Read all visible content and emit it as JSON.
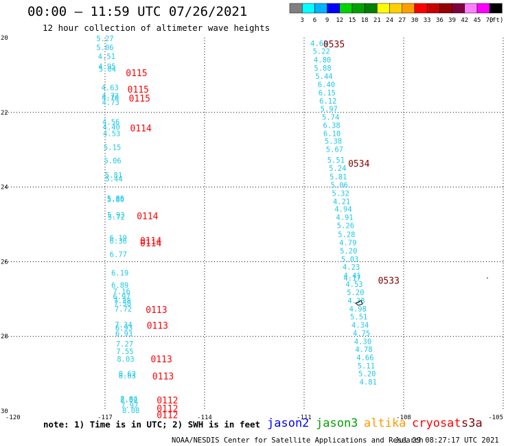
{
  "header": {
    "title": "00:00 – 11:59 UTC 07/26/2021",
    "subtitle": "12 hour collection of altimeter wave heights"
  },
  "color_scale": {
    "unit": "(ft)",
    "labels": [
      "3",
      "6",
      "9",
      "12",
      "15",
      "18",
      "21",
      "24",
      "27",
      "30",
      "33",
      "36",
      "39",
      "42",
      "45",
      "70"
    ],
    "colors": [
      "#808080",
      "#00ffff",
      "#00b4ff",
      "#0000ff",
      "#00d400",
      "#00a000",
      "#008000",
      "#ffff00",
      "#ffd000",
      "#ffa000",
      "#ff0000",
      "#c80000",
      "#960000",
      "#800040",
      "#ff80ff",
      "#ff00ff",
      "#000000"
    ]
  },
  "map": {
    "lon_labels": [
      "-120",
      "-117",
      "-114",
      "-111",
      "-108",
      "-105"
    ],
    "lat_labels": [
      "20",
      "22",
      "24",
      "26",
      "28",
      "30"
    ],
    "obs_left": [
      {
        "v": "5.27",
        "lon": -117.0,
        "lat": 20.02
      },
      {
        "v": "5.06",
        "lon": -117.0,
        "lat": 20.26
      },
      {
        "v": "4.51",
        "lon": -116.95,
        "lat": 20.5
      },
      {
        "v": "4.95",
        "lon": -116.94,
        "lat": 20.76
      },
      {
        "v": "5.04",
        "lon": -116.93,
        "lat": 20.84
      },
      {
        "v": "4.63",
        "lon": -116.85,
        "lat": 21.33
      },
      {
        "v": "4.72",
        "lon": -116.84,
        "lat": 21.55
      },
      {
        "v": "4.70",
        "lon": -116.84,
        "lat": 21.61
      },
      {
        "v": "4.73",
        "lon": -116.83,
        "lat": 21.73
      },
      {
        "v": "4.56",
        "lon": -116.82,
        "lat": 22.25
      },
      {
        "v": "4.40",
        "lon": -116.81,
        "lat": 22.39
      },
      {
        "v": "4.53",
        "lon": -116.8,
        "lat": 22.56
      },
      {
        "v": "5.15",
        "lon": -116.78,
        "lat": 22.93
      },
      {
        "v": "5.06",
        "lon": -116.77,
        "lat": 23.29
      },
      {
        "v": "5.81",
        "lon": -116.74,
        "lat": 23.68
      },
      {
        "v": "5.44",
        "lon": -116.73,
        "lat": 23.78
      },
      {
        "v": "5.86",
        "lon": -116.68,
        "lat": 24.3
      },
      {
        "v": "5.80",
        "lon": -116.68,
        "lat": 24.33
      },
      {
        "v": "5.93",
        "lon": -116.67,
        "lat": 24.74
      },
      {
        "v": "5.72",
        "lon": -116.66,
        "lat": 24.8
      },
      {
        "v": "6.19",
        "lon": -116.6,
        "lat": 25.36
      },
      {
        "v": "6.36",
        "lon": -116.6,
        "lat": 25.44
      },
      {
        "v": "6.77",
        "lon": -116.6,
        "lat": 25.8
      },
      {
        "v": "6.19",
        "lon": -116.55,
        "lat": 26.3
      },
      {
        "v": "6.89",
        "lon": -116.55,
        "lat": 26.63
      },
      {
        "v": "7.16",
        "lon": -116.5,
        "lat": 26.79
      },
      {
        "v": "6.97",
        "lon": -116.5,
        "lat": 26.93
      },
      {
        "v": "7.38",
        "lon": -116.48,
        "lat": 27.04
      },
      {
        "v": "7.58",
        "lon": -116.47,
        "lat": 27.11
      },
      {
        "v": "7.72",
        "lon": -116.45,
        "lat": 27.26
      },
      {
        "v": "7.34",
        "lon": -116.44,
        "lat": 27.68
      },
      {
        "v": "6.93",
        "lon": -116.43,
        "lat": 27.77
      },
      {
        "v": "6.93",
        "lon": -116.43,
        "lat": 27.92
      },
      {
        "v": "7.27",
        "lon": -116.41,
        "lat": 28.2
      },
      {
        "v": "7.55",
        "lon": -116.4,
        "lat": 28.4
      },
      {
        "v": "8.03",
        "lon": -116.38,
        "lat": 28.6
      },
      {
        "v": "8.62",
        "lon": -116.33,
        "lat": 29.0
      },
      {
        "v": "8.63",
        "lon": -116.33,
        "lat": 29.05
      },
      {
        "v": "7.84",
        "lon": -116.28,
        "lat": 29.68
      },
      {
        "v": "8.02",
        "lon": -116.28,
        "lat": 29.7
      },
      {
        "v": "7.97",
        "lon": -116.26,
        "lat": 29.84
      },
      {
        "v": "8.08",
        "lon": -116.22,
        "lat": 29.98
      }
    ],
    "obs_right": [
      {
        "v": "4.63",
        "lon": -110.55,
        "lat": 20.15
      },
      {
        "v": "5.22",
        "lon": -110.48,
        "lat": 20.36
      },
      {
        "v": "4.80",
        "lon": -110.45,
        "lat": 20.59
      },
      {
        "v": "5.88",
        "lon": -110.44,
        "lat": 20.81
      },
      {
        "v": "5.44",
        "lon": -110.4,
        "lat": 21.03
      },
      {
        "v": "6.40",
        "lon": -110.33,
        "lat": 21.25
      },
      {
        "v": "6.15",
        "lon": -110.31,
        "lat": 21.47
      },
      {
        "v": "6.12",
        "lon": -110.28,
        "lat": 21.69
      },
      {
        "v": "5.97",
        "lon": -110.25,
        "lat": 21.9
      },
      {
        "v": "5.74",
        "lon": -110.2,
        "lat": 22.12
      },
      {
        "v": "6.38",
        "lon": -110.17,
        "lat": 22.34
      },
      {
        "v": "6.10",
        "lon": -110.16,
        "lat": 22.56
      },
      {
        "v": "5.38",
        "lon": -110.12,
        "lat": 22.77
      },
      {
        "v": "5.67",
        "lon": -110.08,
        "lat": 22.99
      },
      {
        "v": "5.51",
        "lon": -110.04,
        "lat": 23.27
      },
      {
        "v": "5.24",
        "lon": -109.99,
        "lat": 23.49
      },
      {
        "v": "5.81",
        "lon": -109.97,
        "lat": 23.72
      },
      {
        "v": "5.06",
        "lon": -109.94,
        "lat": 23.94
      },
      {
        "v": "5.32",
        "lon": -109.9,
        "lat": 24.16
      },
      {
        "v": "4.21",
        "lon": -109.87,
        "lat": 24.38
      },
      {
        "v": "4.94",
        "lon": -109.82,
        "lat": 24.59
      },
      {
        "v": "4.91",
        "lon": -109.78,
        "lat": 24.81
      },
      {
        "v": "5.26",
        "lon": -109.75,
        "lat": 25.03
      },
      {
        "v": "5.28",
        "lon": -109.72,
        "lat": 25.27
      },
      {
        "v": "4.79",
        "lon": -109.68,
        "lat": 25.49
      },
      {
        "v": "5.20",
        "lon": -109.66,
        "lat": 25.71
      },
      {
        "v": "5.03",
        "lon": -109.62,
        "lat": 25.93
      },
      {
        "v": "4.23",
        "lon": -109.58,
        "lat": 26.14
      },
      {
        "v": "4.41",
        "lon": -109.55,
        "lat": 26.37
      },
      {
        "v": "4.17",
        "lon": -109.55,
        "lat": 26.43
      },
      {
        "v": "4.53",
        "lon": -109.49,
        "lat": 26.6
      },
      {
        "v": "5.20",
        "lon": -109.45,
        "lat": 26.82
      },
      {
        "v": "4.38",
        "lon": -109.43,
        "lat": 27.04
      },
      {
        "v": "4.98",
        "lon": -109.38,
        "lat": 27.26
      },
      {
        "v": "5.51",
        "lon": -109.35,
        "lat": 27.47
      },
      {
        "v": "4.34",
        "lon": -109.31,
        "lat": 27.69
      },
      {
        "v": "4.75",
        "lon": -109.27,
        "lat": 27.91
      },
      {
        "v": "4.30",
        "lon": -109.23,
        "lat": 28.13
      },
      {
        "v": "4.78",
        "lon": -109.2,
        "lat": 28.35
      },
      {
        "v": "4.66",
        "lon": -109.16,
        "lat": 28.57
      },
      {
        "v": "5.11",
        "lon": -109.13,
        "lat": 28.79
      },
      {
        "v": "5.20",
        "lon": -109.1,
        "lat": 29.0
      },
      {
        "v": "4.81",
        "lon": -109.07,
        "lat": 29.22
      }
    ],
    "time_labels": [
      {
        "t": "0535",
        "lon": -110.1,
        "lat": 20.17,
        "color": "#800000"
      },
      {
        "t": "0115",
        "lon": -116.05,
        "lat": 20.94,
        "color": "#ff0000"
      },
      {
        "t": "0115",
        "lon": -116.0,
        "lat": 21.38,
        "color": "#ff0000"
      },
      {
        "t": "0115",
        "lon": -115.96,
        "lat": 21.62,
        "color": "#ff0000"
      },
      {
        "t": "0114",
        "lon": -115.92,
        "lat": 22.42,
        "color": "#ff0000"
      },
      {
        "t": "0534",
        "lon": -109.35,
        "lat": 23.36,
        "color": "#800000"
      },
      {
        "t": "0114",
        "lon": -115.72,
        "lat": 24.77,
        "color": "#ff0000"
      },
      {
        "t": "0114",
        "lon": -115.62,
        "lat": 25.43,
        "color": "#ff0000"
      },
      {
        "t": "0114",
        "lon": -115.62,
        "lat": 25.5,
        "color": "#ff0000"
      },
      {
        "t": "0533",
        "lon": -108.45,
        "lat": 26.5,
        "color": "#800000"
      },
      {
        "t": "0113",
        "lon": -115.45,
        "lat": 27.28,
        "color": "#ff0000"
      },
      {
        "t": "0113",
        "lon": -115.42,
        "lat": 27.7,
        "color": "#ff0000"
      },
      {
        "t": "0113",
        "lon": -115.3,
        "lat": 28.6,
        "color": "#ff0000"
      },
      {
        "t": "0113",
        "lon": -115.25,
        "lat": 29.06,
        "color": "#ff0000"
      },
      {
        "t": "0112",
        "lon": -115.12,
        "lat": 29.71,
        "color": "#ff0000"
      },
      {
        "t": "0112",
        "lon": -115.12,
        "lat": 29.93,
        "color": "#ff0000"
      },
      {
        "t": "0112",
        "lon": -115.12,
        "lat": 30.1,
        "color": "#ff0000"
      }
    ]
  },
  "note": {
    "text": "note: 1) Time is in UTC; 2) SWH is in feet"
  },
  "satellites": [
    {
      "name": "jason2",
      "color": "#0000ff"
    },
    {
      "name": "jason3",
      "color": "#00a000"
    },
    {
      "name": "altika",
      "color": "#ff9900"
    },
    {
      "name": "cryosat",
      "color": "#ff0000"
    },
    {
      "name": "s3a",
      "color": "#800000"
    }
  ],
  "footer": {
    "credit": "NOAA/NESDIS Center for Satellite Applications and Research",
    "timestamp": "Jul 29 08:27:17 UTC 2021"
  }
}
